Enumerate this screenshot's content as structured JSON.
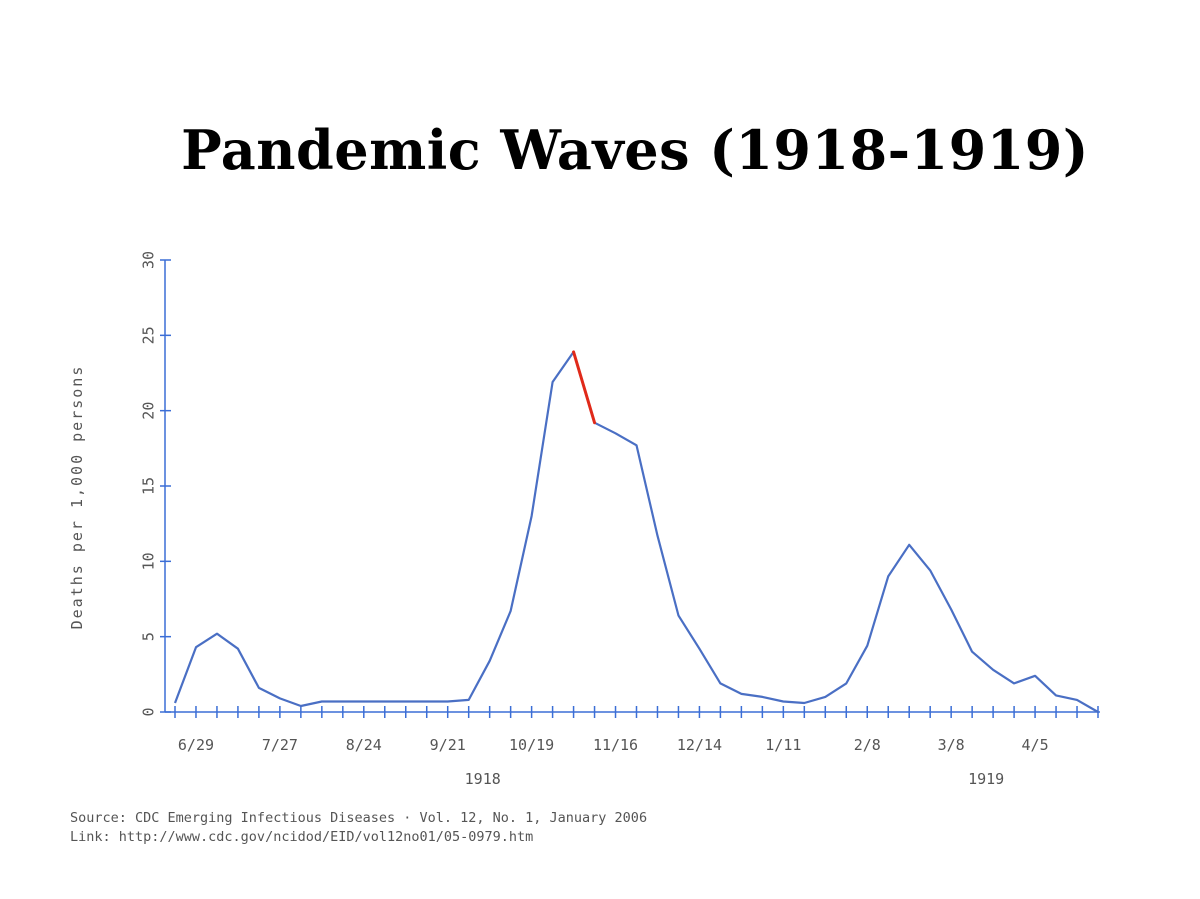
{
  "title": "Pandemic Waves (1918-1919)",
  "source": {
    "line1": "Source: CDC Emerging Infectious Diseases · Vol. 12, No. 1, January 2006",
    "line2": "Link: http://www.cdc.gov/ncidod/EID/vol12no01/05-0979.htm"
  },
  "chart_data": {
    "type": "line",
    "title": "Pandemic Waves (1918-1919)",
    "ylabel": "Deaths per 1,000 persons",
    "xlabel": "",
    "ylim": [
      0,
      30
    ],
    "yticks": [
      0,
      5,
      10,
      15,
      20,
      25,
      30
    ],
    "grid": false,
    "xticks": [
      "6/29",
      "7/27",
      "8/24",
      "9/21",
      "10/19",
      "11/16",
      "12/14",
      "1/11",
      "2/8",
      "3/8",
      "4/5"
    ],
    "year_labels": [
      {
        "label": "1918",
        "near_tick": "9/21"
      },
      {
        "label": "1919",
        "near_tick": "3/8"
      }
    ],
    "colors": {
      "line": "#4a6fc4",
      "axis": "#3b6ed6",
      "highlight": "#e02a1a"
    },
    "series": [
      {
        "x": [
          "1918-06-22",
          "1918-06-29",
          "1918-07-06",
          "1918-07-13",
          "1918-07-20",
          "1918-07-27",
          "1918-08-03",
          "1918-08-10",
          "1918-08-17",
          "1918-08-24",
          "1918-08-31",
          "1918-09-07",
          "1918-09-14",
          "1918-09-21",
          "1918-09-28",
          "1918-10-05",
          "1918-10-12",
          "1918-10-19",
          "1918-10-26",
          "1918-11-02",
          "1918-11-09",
          "1918-11-16",
          "1918-11-23",
          "1918-11-30",
          "1918-12-07",
          "1918-12-14",
          "1918-12-21",
          "1918-12-28",
          "1919-01-04",
          "1919-01-11",
          "1919-01-18",
          "1919-01-25",
          "1919-02-01",
          "1919-02-08",
          "1919-02-15",
          "1919-02-22",
          "1919-03-01",
          "1919-03-08",
          "1919-03-15",
          "1919-03-22",
          "1919-03-29",
          "1919-04-05",
          "1919-04-12",
          "1919-04-19",
          "1919-04-26"
        ],
        "values": [
          0.6,
          4.3,
          5.2,
          4.2,
          1.6,
          0.9,
          0.4,
          0.7,
          0.7,
          0.7,
          0.7,
          0.7,
          0.7,
          0.7,
          0.8,
          3.4,
          6.7,
          13.0,
          21.9,
          23.9,
          19.2,
          18.5,
          17.7,
          11.7,
          6.4,
          4.2,
          1.9,
          1.2,
          1.0,
          0.7,
          0.6,
          1.0,
          1.9,
          4.4,
          9.0,
          11.1,
          9.4,
          6.8,
          4.0,
          2.8,
          1.9,
          2.4,
          1.1,
          0.8,
          0.0
        ]
      }
    ],
    "highlight_segment": {
      "from": "1918-11-02",
      "to": "1918-11-09"
    }
  }
}
